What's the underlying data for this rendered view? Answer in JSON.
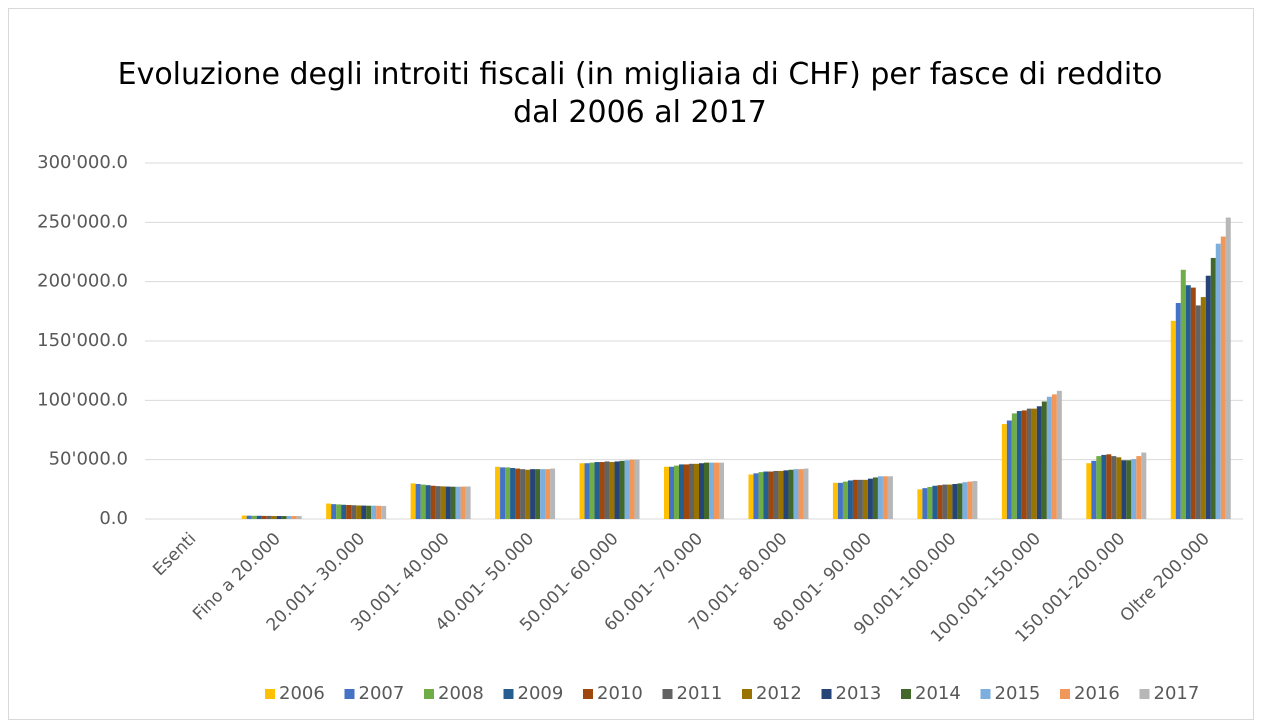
{
  "chart_data": {
    "type": "bar",
    "title": "Evoluzione degli introiti fiscali (in migliaia di CHF) per fasce di reddito dal 2006 al 2017",
    "categories": [
      "Esenti",
      "Fino a 20.000",
      "20.001- 30.000",
      "30.001- 40.000",
      "40.001- 50.000",
      "50.001- 60.000",
      "60.001- 70.000",
      "70.001- 80.000",
      "80.001- 90.000",
      "90.001-100.000",
      "100.001-150.000",
      "150.001-200.000",
      "Oltre 200.000"
    ],
    "series": [
      {
        "name": "2006",
        "color": "#FFC000",
        "values": [
          0,
          2900,
          13000,
          30000,
          44000,
          47000,
          44000,
          37500,
          30500,
          25000,
          80000,
          47000,
          167000
        ]
      },
      {
        "name": "2007",
        "color": "#4472C4",
        "values": [
          0,
          2800,
          12500,
          29500,
          43500,
          47000,
          44000,
          38500,
          30500,
          26000,
          83000,
          49000,
          182000
        ]
      },
      {
        "name": "2008",
        "color": "#70AD47",
        "values": [
          0,
          2700,
          12300,
          29000,
          43500,
          47500,
          45000,
          39500,
          31500,
          27000,
          89000,
          53000,
          210000
        ]
      },
      {
        "name": "2009",
        "color": "#255E91",
        "values": [
          0,
          2700,
          12000,
          28500,
          43000,
          48000,
          46000,
          40000,
          32500,
          28000,
          91000,
          54000,
          197000
        ]
      },
      {
        "name": "2010",
        "color": "#9E480E",
        "values": [
          0,
          2600,
          11800,
          28000,
          42500,
          48000,
          46000,
          40000,
          33000,
          28500,
          91500,
          54500,
          195000
        ]
      },
      {
        "name": "2011",
        "color": "#636363",
        "values": [
          0,
          2600,
          11600,
          27700,
          42000,
          48500,
          46500,
          40500,
          33000,
          29000,
          93000,
          53000,
          180000
        ]
      },
      {
        "name": "2012",
        "color": "#997300",
        "values": [
          0,
          2500,
          11400,
          27500,
          41500,
          48000,
          46500,
          40500,
          33000,
          29000,
          93000,
          52000,
          187000
        ]
      },
      {
        "name": "2013",
        "color": "#264478",
        "values": [
          0,
          2500,
          11300,
          27300,
          42000,
          48500,
          47000,
          41000,
          34000,
          29500,
          95000,
          49500,
          205000
        ]
      },
      {
        "name": "2014",
        "color": "#43682B",
        "values": [
          0,
          2500,
          11200,
          27200,
          42000,
          49000,
          47500,
          41500,
          35000,
          30000,
          99000,
          49500,
          220000
        ]
      },
      {
        "name": "2015",
        "color": "#7CAFDD",
        "values": [
          0,
          2500,
          11200,
          27200,
          42000,
          49500,
          47500,
          42000,
          36000,
          31000,
          103000,
          50500,
          232000
        ]
      },
      {
        "name": "2016",
        "color": "#F1975A",
        "values": [
          0,
          2500,
          11100,
          27300,
          42000,
          50000,
          47500,
          42000,
          36000,
          31500,
          105000,
          53000,
          238000
        ]
      },
      {
        "name": "2017",
        "color": "#B7B7B7",
        "values": [
          0,
          2500,
          11000,
          27400,
          42500,
          50000,
          47500,
          42500,
          36000,
          32000,
          108000,
          56000,
          254000
        ]
      }
    ],
    "ylim": [
      0,
      300000
    ],
    "yticks": [
      {
        "value": 0,
        "label": "0.0"
      },
      {
        "value": 50000,
        "label": "50'000.0"
      },
      {
        "value": 100000,
        "label": "100'000.0"
      },
      {
        "value": 150000,
        "label": "150'000.0"
      },
      {
        "value": 200000,
        "label": "200'000.0"
      },
      {
        "value": 250000,
        "label": "250'000.0"
      },
      {
        "value": 300000,
        "label": "300'000.0"
      }
    ],
    "grid": true,
    "legend": "bottom"
  }
}
